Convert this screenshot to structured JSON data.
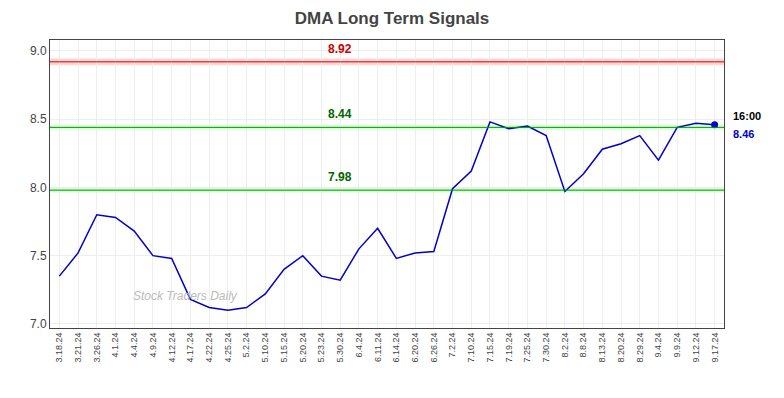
{
  "chart_data": {
    "type": "line",
    "title": "DMA Long Term Signals",
    "categories": [
      "3.18.24",
      "3.21.24",
      "3.26.24",
      "4.1.24",
      "4.4.24",
      "4.9.24",
      "4.12.24",
      "4.17.24",
      "4.22.24",
      "4.25.24",
      "5.2.24",
      "5.10.24",
      "5.15.24",
      "5.20.24",
      "5.23.24",
      "5.30.24",
      "6.4.24",
      "6.11.24",
      "6.14.24",
      "6.20.24",
      "6.26.24",
      "7.2.24",
      "7.10.24",
      "7.15.24",
      "7.19.24",
      "7.25.24",
      "7.30.24",
      "8.2.24",
      "8.8.24",
      "8.13.24",
      "8.20.24",
      "8.29.24",
      "9.4.24",
      "9.9.24",
      "9.12.24",
      "9.17.24"
    ],
    "values": [
      7.35,
      7.52,
      7.8,
      7.78,
      7.68,
      7.5,
      7.48,
      7.18,
      7.12,
      7.1,
      7.12,
      7.22,
      7.4,
      7.5,
      7.35,
      7.32,
      7.55,
      7.7,
      7.48,
      7.52,
      7.53,
      7.99,
      8.12,
      8.48,
      8.43,
      8.45,
      8.38,
      7.97,
      8.1,
      8.28,
      8.32,
      8.38,
      8.2,
      8.44,
      8.47,
      8.46
    ],
    "color": "#0000cc",
    "ylim": [
      6.97,
      9.08
    ],
    "yticks": [
      {
        "value": 7,
        "label": "7.0"
      },
      7.5,
      {
        "value": 8,
        "label": "8.0"
      },
      8.5,
      {
        "value": 9,
        "label": "9.0"
      }
    ],
    "grid": true,
    "hlines": [
      {
        "value": 8.92,
        "label": "8.92",
        "color": "#cc0000",
        "band_color": "#ffaaaa",
        "label_color": "#cc0000"
      },
      {
        "value": 8.44,
        "label": "8.44",
        "color": "#009900",
        "band_color": "#aaffaa",
        "label_color": "#006600"
      },
      {
        "value": 7.98,
        "label": "7.98",
        "color": "#009900",
        "band_color": "#aaffaa",
        "label_color": "#006600"
      }
    ],
    "watermark": "Stock Traders Daily",
    "watermark_color": "#bbbbbb",
    "last_label": "16:00",
    "last_label_color": "#000000",
    "last_value_label": "8.46",
    "last_value_color": "#0000cc"
  }
}
